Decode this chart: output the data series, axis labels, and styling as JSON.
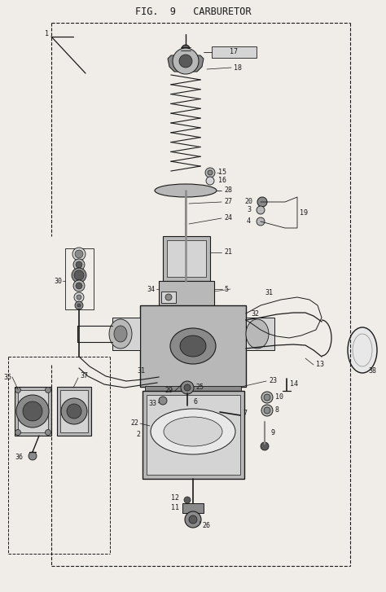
{
  "title": "FIG.  9   CARBURETOR",
  "bg_color": "#f0ede8",
  "line_color": "#1a1a1a",
  "fig_width": 4.74,
  "fig_height": 7.27,
  "dpi": 100,
  "label_fs": 6.0,
  "title_fs": 8.5,
  "lw_main": 0.7,
  "lw_thin": 0.45,
  "gray_dark": "#5a5a5a",
  "gray_mid": "#8a8a8a",
  "gray_light": "#b8b8b8",
  "gray_vlight": "#d4d4d4",
  "white": "#e8e8e8"
}
